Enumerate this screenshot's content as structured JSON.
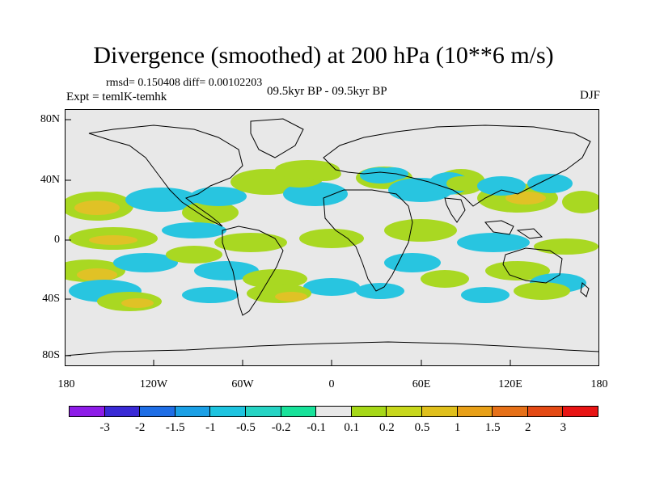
{
  "title": "Divergence (smoothed) at 200 hPa (10**6 m/s)",
  "stats": "rmsd= 0.150408 diff= 0.00102203",
  "expt": "Expt = temlK-temhk",
  "period": "09.5kyr BP - 09.5kyr BP",
  "season": "DJF",
  "axes": {
    "y_ticks": [
      "80N",
      "40N",
      "0",
      "40S",
      "80S"
    ],
    "x_ticks": [
      "180",
      "120W",
      "60W",
      "0",
      "60E",
      "120E",
      "180"
    ]
  },
  "colorbar": {
    "colors": [
      "#8e1ce8",
      "#3a2ad6",
      "#1f6ee6",
      "#1ba0e6",
      "#1ec4e0",
      "#26d4c4",
      "#18e29a",
      "#e8e8e8",
      "#a6d818",
      "#c8d81c",
      "#e0c01c",
      "#e8a018",
      "#e67018",
      "#e44a14",
      "#e81414"
    ],
    "labels": [
      "-3",
      "-2",
      "-1.5",
      "-1",
      "-0.5",
      "-0.2",
      "-0.1",
      "0.1",
      "0.2",
      "0.5",
      "1",
      "1.5",
      "2",
      "3"
    ]
  },
  "colors": {
    "background": "#e8e8e8",
    "positive": "#a6d818",
    "positive_strong": "#e0c01c",
    "negative": "#1ec4e0",
    "negative_strong": "#1ba0e6"
  }
}
